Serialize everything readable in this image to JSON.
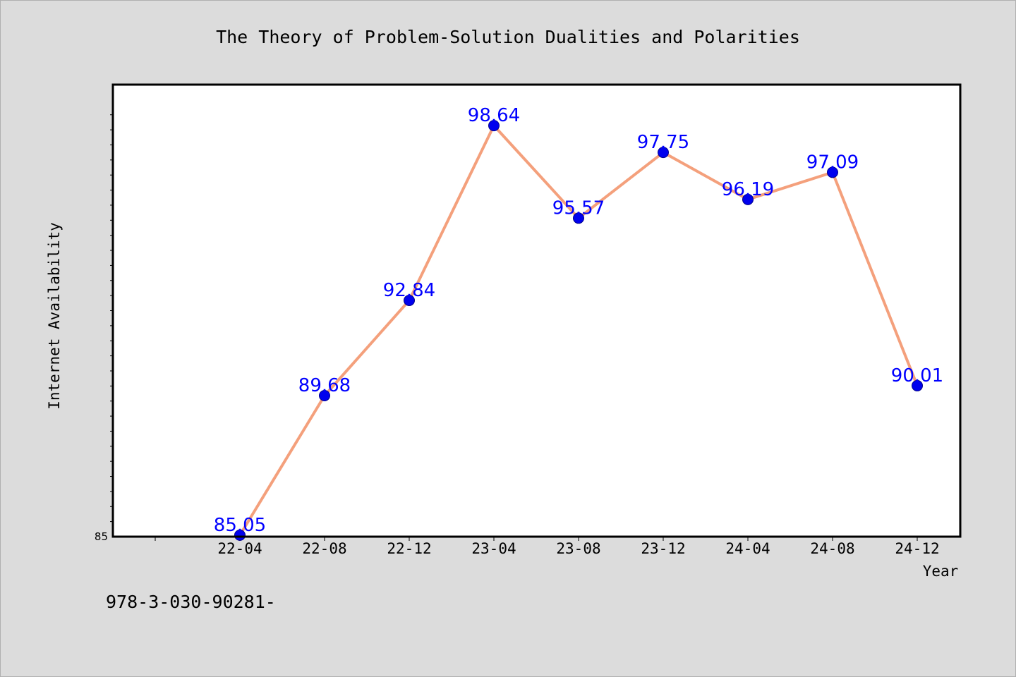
{
  "chart_data": {
    "type": "line",
    "title": "The Theory of Problem-Solution Dualities and Polarities",
    "xlabel": "Year",
    "ylabel": "Internet Availability",
    "categories": [
      "22-04",
      "22-08",
      "22-12",
      "23-04",
      "23-08",
      "23-12",
      "24-04",
      "24-08",
      "24-12"
    ],
    "series": [
      {
        "values": [
          85.05,
          89.68,
          92.84,
          98.64,
          95.57,
          97.75,
          96.19,
          97.09,
          90.01
        ],
        "labels": [
          "85.05",
          "89.68",
          "92.84",
          "98.64",
          "95.57",
          "97.75",
          "96.19",
          "97.09",
          "90.01"
        ],
        "line_color": "#f4a07c",
        "marker_color": "#0000ee",
        "label_color": "#0000ff"
      }
    ],
    "ylim": [
      85,
      100
    ],
    "y_tick_labels": [
      "85"
    ],
    "grid": false,
    "legend": "none"
  },
  "footer": {
    "isbn": "978-3-030-90281-"
  }
}
